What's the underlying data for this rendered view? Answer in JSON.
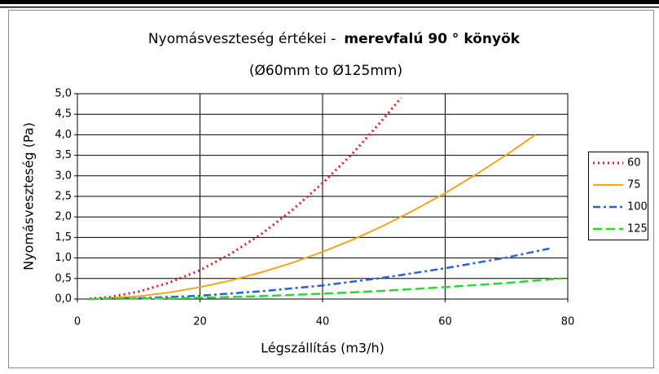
{
  "chart_data": {
    "type": "line",
    "title": "Nyomásveszteség értékei -",
    "title_emphasis": "merevfalú 90 ° könyök",
    "subtitle": "(Ø60mm to Ø125mm)",
    "x_label": "Légszállítás (m3/h)",
    "y_label": "Nyomásveszteség (Pa)",
    "xlim": [
      0,
      80
    ],
    "xticks": [
      0,
      20,
      40,
      60,
      80
    ],
    "ylim": [
      0,
      5
    ],
    "yticks": [
      {
        "value": 0,
        "label": "0,0"
      },
      {
        "value": 0.5,
        "label": "0,5"
      },
      {
        "value": 1,
        "label": "1,0"
      },
      {
        "value": 1.5,
        "label": "1,5"
      },
      {
        "value": 2,
        "label": "2,0"
      },
      {
        "value": 2.5,
        "label": "2,5"
      },
      {
        "value": 3,
        "label": "3,0"
      },
      {
        "value": 3.5,
        "label": "3,5"
      },
      {
        "value": 4,
        "label": "4,0"
      },
      {
        "value": 4.5,
        "label": "4,5"
      },
      {
        "value": 5,
        "label": "5,0"
      }
    ],
    "grid": true,
    "legend": "right",
    "series": [
      {
        "name": "60",
        "color": "#e8141e",
        "dash": "2,4",
        "width": 3,
        "x": [
          2,
          5,
          10,
          15,
          20,
          25,
          30,
          35,
          40,
          45,
          50,
          52.8
        ],
        "values": [
          0.01,
          0.04,
          0.18,
          0.4,
          0.7,
          1.1,
          1.58,
          2.16,
          2.82,
          3.56,
          4.4,
          4.9
        ]
      },
      {
        "name": "75",
        "color": "#f7a21b",
        "dash": "none",
        "width": 2,
        "x": [
          2,
          5,
          10,
          15,
          20,
          25,
          30,
          35,
          40,
          45,
          50,
          55,
          60,
          65,
          70,
          74.7
        ],
        "values": [
          0,
          0.02,
          0.07,
          0.16,
          0.29,
          0.45,
          0.65,
          0.88,
          1.15,
          1.45,
          1.79,
          2.17,
          2.58,
          3.03,
          3.51,
          4.0
        ]
      },
      {
        "name": "100",
        "color": "#2a5fd6",
        "dash": "9,4,3,4",
        "width": 2.5,
        "x": [
          2,
          10,
          20,
          30,
          40,
          50,
          60,
          70,
          77
        ],
        "values": [
          0,
          0.02,
          0.08,
          0.19,
          0.33,
          0.52,
          0.75,
          1.01,
          1.23
        ]
      },
      {
        "name": "125",
        "color": "#2fd62f",
        "dash": "11,5",
        "width": 2.5,
        "x": [
          2,
          10,
          20,
          30,
          40,
          50,
          60,
          70,
          79
        ],
        "values": [
          0,
          0.01,
          0.03,
          0.07,
          0.13,
          0.2,
          0.29,
          0.39,
          0.5
        ]
      }
    ]
  }
}
